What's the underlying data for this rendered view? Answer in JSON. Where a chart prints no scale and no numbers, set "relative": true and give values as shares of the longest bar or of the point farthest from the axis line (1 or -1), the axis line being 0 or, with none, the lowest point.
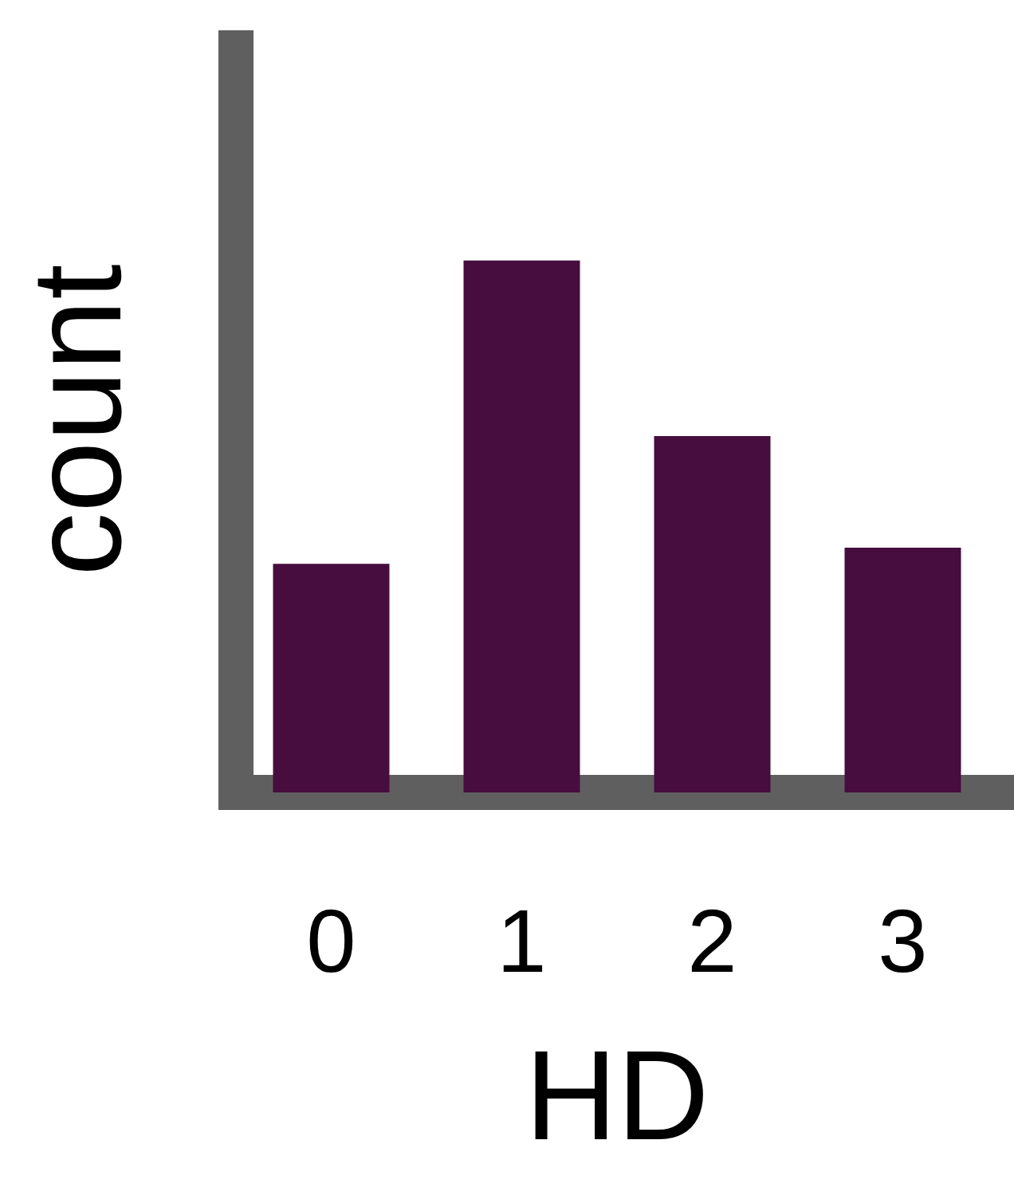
{
  "chart_data": {
    "type": "bar",
    "xlabel": "HD",
    "ylabel": "count",
    "categories": [
      "0",
      "1",
      "2",
      "3"
    ],
    "values": [
      0.43,
      1,
      0.67,
      0.46
    ],
    "color": "#460d3e",
    "relative": true
  }
}
